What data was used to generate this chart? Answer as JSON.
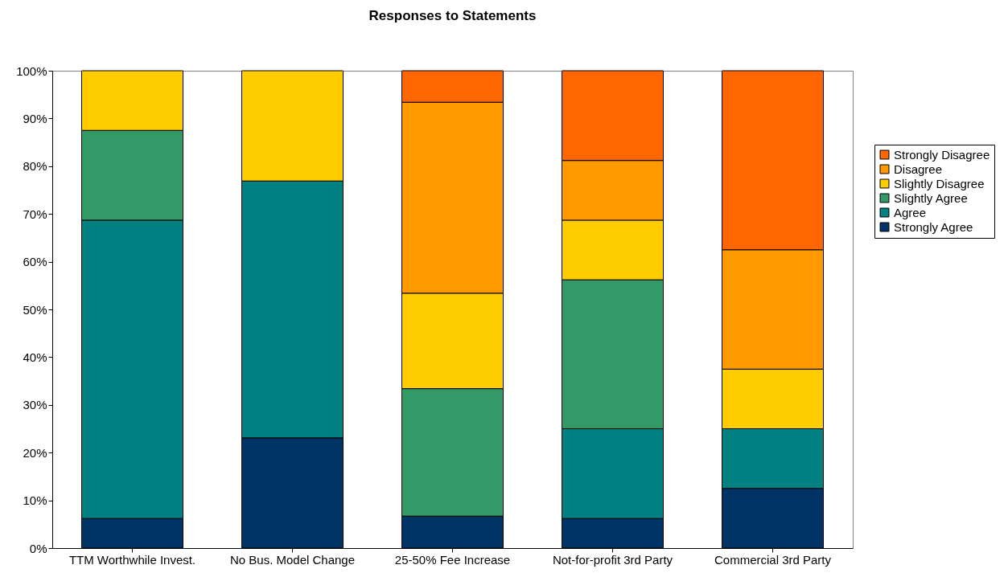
{
  "chart_data": {
    "type": "bar",
    "title": "Responses to Statements",
    "stacked": true,
    "categories": [
      "TTM Worthwhile Invest.",
      "No Bus. Model Change",
      "25-50% Fee Increase",
      "Not-for-profit 3rd Party",
      "Commercial 3rd Party"
    ],
    "series": [
      {
        "name": "Strongly Agree",
        "color": "#003366",
        "values": [
          6.2,
          23.1,
          6.7,
          6.2,
          12.5
        ]
      },
      {
        "name": "Agree",
        "color": "#008080",
        "values": [
          62.5,
          53.8,
          null,
          18.8,
          12.5
        ]
      },
      {
        "name": "Slightly Agree",
        "color": "#339966",
        "values": [
          18.8,
          null,
          26.7,
          31.2,
          null
        ]
      },
      {
        "name": "Slightly Disagree",
        "color": "#ffcc00",
        "values": [
          12.5,
          23.1,
          20,
          12.5,
          12.5
        ]
      },
      {
        "name": "Disagree",
        "color": "#ff9900",
        "values": [
          null,
          null,
          40,
          12.5,
          25
        ]
      },
      {
        "name": "Strongly Disagree",
        "color": "#ff6600",
        "values": [
          null,
          null,
          6.6,
          18.8,
          37.5
        ]
      }
    ],
    "ylim": [
      0,
      100
    ],
    "yticks": [
      {
        "value": 0,
        "label": "0%"
      },
      {
        "value": 10,
        "label": "10%"
      },
      {
        "value": 20,
        "label": "20%"
      },
      {
        "value": 30,
        "label": "30%"
      },
      {
        "value": 40,
        "label": "40%"
      },
      {
        "value": 50,
        "label": "50%"
      },
      {
        "value": 60,
        "label": "60%"
      },
      {
        "value": 70,
        "label": "70%"
      },
      {
        "value": 80,
        "label": "80%"
      },
      {
        "value": 90,
        "label": "90%"
      },
      {
        "value": 100,
        "label": "100%"
      }
    ],
    "grid": false,
    "legend": "right"
  }
}
